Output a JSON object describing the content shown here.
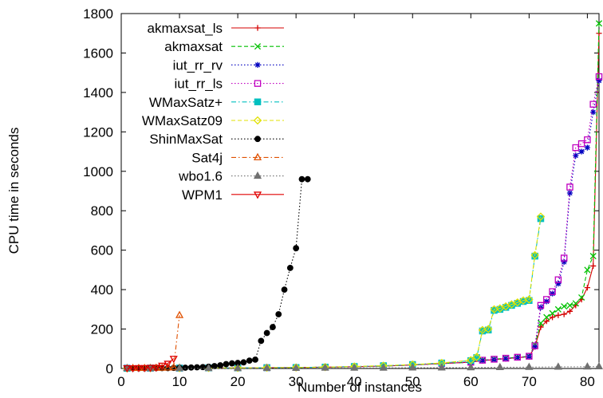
{
  "chart_data": {
    "type": "line",
    "title": "",
    "xlabel": "Number of instances",
    "ylabel": "CPU time in seconds",
    "xlim": [
      0,
      82
    ],
    "ylim": [
      0,
      1800
    ],
    "xticks": [
      0,
      10,
      20,
      30,
      40,
      50,
      60,
      70,
      80
    ],
    "yticks": [
      0,
      200,
      400,
      600,
      800,
      1000,
      1200,
      1400,
      1600,
      1800
    ],
    "grid": false,
    "legend_position": "top-left",
    "series": [
      {
        "name": "akmaxsat_ls",
        "color": "#d40000",
        "marker": "plus",
        "dash": "solid",
        "x": [
          1,
          5,
          10,
          15,
          20,
          25,
          30,
          35,
          40,
          45,
          50,
          55,
          60,
          62,
          64,
          66,
          68,
          70,
          71,
          72,
          73,
          74,
          75,
          76,
          77,
          78,
          79,
          80,
          81,
          82
        ],
        "y": [
          2,
          2,
          2,
          3,
          3,
          4,
          5,
          7,
          9,
          12,
          18,
          25,
          32,
          40,
          45,
          50,
          55,
          60,
          110,
          210,
          240,
          260,
          270,
          275,
          290,
          320,
          350,
          410,
          520,
          1700
        ]
      },
      {
        "name": "akmaxsat",
        "color": "#00c000",
        "marker": "x",
        "dash": "dashed",
        "x": [
          1,
          5,
          10,
          15,
          20,
          25,
          30,
          35,
          40,
          45,
          50,
          55,
          60,
          62,
          64,
          66,
          68,
          70,
          71,
          72,
          73,
          74,
          75,
          76,
          77,
          78,
          79,
          80,
          81,
          82
        ],
        "y": [
          2,
          2,
          2,
          3,
          3,
          4,
          5,
          7,
          9,
          12,
          18,
          25,
          32,
          42,
          47,
          52,
          57,
          62,
          120,
          230,
          260,
          280,
          300,
          315,
          320,
          330,
          360,
          500,
          570,
          1750
        ]
      },
      {
        "name": "iut_rr_rv",
        "color": "#0000c0",
        "marker": "star",
        "dash": "dotted",
        "x": [
          1,
          5,
          10,
          15,
          20,
          25,
          30,
          35,
          40,
          45,
          50,
          55,
          60,
          62,
          64,
          66,
          68,
          70,
          71,
          72,
          73,
          74,
          75,
          76,
          77,
          78,
          79,
          80,
          81,
          82
        ],
        "y": [
          2,
          2,
          2,
          3,
          3,
          4,
          5,
          7,
          9,
          12,
          18,
          25,
          32,
          40,
          45,
          50,
          55,
          60,
          110,
          310,
          340,
          380,
          430,
          540,
          890,
          1080,
          1100,
          1120,
          1300,
          1460
        ]
      },
      {
        "name": "iut_rr_ls",
        "color": "#c000c0",
        "marker": "square",
        "dash": "dotted",
        "x": [
          1,
          5,
          10,
          15,
          20,
          25,
          30,
          35,
          40,
          45,
          50,
          55,
          60,
          62,
          64,
          66,
          68,
          70,
          71,
          72,
          73,
          74,
          75,
          76,
          77,
          78,
          79,
          80,
          81,
          82
        ],
        "y": [
          2,
          2,
          2,
          3,
          3,
          4,
          5,
          7,
          9,
          12,
          18,
          25,
          32,
          42,
          47,
          52,
          57,
          62,
          115,
          320,
          350,
          390,
          450,
          560,
          920,
          1120,
          1140,
          1160,
          1340,
          1480
        ]
      },
      {
        "name": "WMaxSatz+",
        "color": "#00c0c0",
        "marker": "filled-square",
        "dash": "dashdot",
        "x": [
          1,
          5,
          10,
          15,
          20,
          25,
          30,
          35,
          40,
          45,
          50,
          55,
          60,
          61,
          62,
          63,
          64,
          65,
          66,
          67,
          68,
          69,
          70,
          71,
          72
        ],
        "y": [
          1,
          2,
          2,
          3,
          3,
          4,
          5,
          7,
          10,
          14,
          20,
          28,
          40,
          55,
          190,
          195,
          295,
          300,
          310,
          320,
          330,
          340,
          345,
          570,
          760
        ]
      },
      {
        "name": "WMaxSatz09",
        "color": "#e0e000",
        "marker": "diamond",
        "dash": "dashed",
        "x": [
          1,
          5,
          10,
          15,
          20,
          25,
          30,
          35,
          40,
          45,
          50,
          55,
          60,
          61,
          62,
          63,
          64,
          65,
          66,
          67,
          68,
          69,
          70,
          71,
          72
        ],
        "y": [
          1,
          2,
          2,
          3,
          3,
          4,
          5,
          7,
          10,
          14,
          20,
          28,
          42,
          58,
          195,
          200,
          300,
          305,
          315,
          325,
          335,
          345,
          350,
          575,
          770
        ]
      },
      {
        "name": "ShinMaxSat",
        "color": "#000000",
        "marker": "filled-circle",
        "dash": "dotted",
        "x": [
          1,
          2,
          3,
          4,
          5,
          6,
          7,
          8,
          9,
          10,
          11,
          12,
          13,
          14,
          15,
          16,
          17,
          18,
          19,
          20,
          21,
          22,
          23,
          24,
          25,
          26,
          27,
          28,
          29,
          30,
          31,
          32
        ],
        "y": [
          1,
          1,
          1,
          1,
          2,
          2,
          2,
          2,
          3,
          3,
          4,
          5,
          6,
          7,
          9,
          12,
          16,
          22,
          26,
          28,
          31,
          40,
          45,
          140,
          180,
          210,
          275,
          400,
          510,
          610,
          960,
          960
        ]
      },
      {
        "name": "Sat4j",
        "color": "#e05000",
        "marker": "triangle-up",
        "dash": "dashdot",
        "x": [
          1,
          2,
          3,
          4,
          5,
          6,
          7,
          8,
          9,
          10
        ],
        "y": [
          2,
          2,
          2,
          2,
          2,
          3,
          3,
          4,
          5,
          270
        ]
      },
      {
        "name": "wbo1.6",
        "color": "#707070",
        "marker": "filled-triangle-up",
        "dash": "dotted",
        "x": [
          1,
          5,
          10,
          15,
          20,
          25,
          30,
          35,
          40,
          45,
          50,
          55,
          60,
          65,
          70,
          75,
          80,
          82
        ],
        "y": [
          1,
          1,
          1,
          1,
          1,
          2,
          2,
          3,
          3,
          3,
          4,
          4,
          5,
          6,
          7,
          8,
          9,
          10
        ]
      },
      {
        "name": "WPM1",
        "color": "#e00000",
        "marker": "triangle-down",
        "dash": "solid",
        "x": [
          1,
          2,
          3,
          4,
          5,
          6,
          7,
          8,
          9
        ],
        "y": [
          2,
          2,
          3,
          3,
          4,
          5,
          15,
          25,
          50
        ]
      }
    ]
  }
}
